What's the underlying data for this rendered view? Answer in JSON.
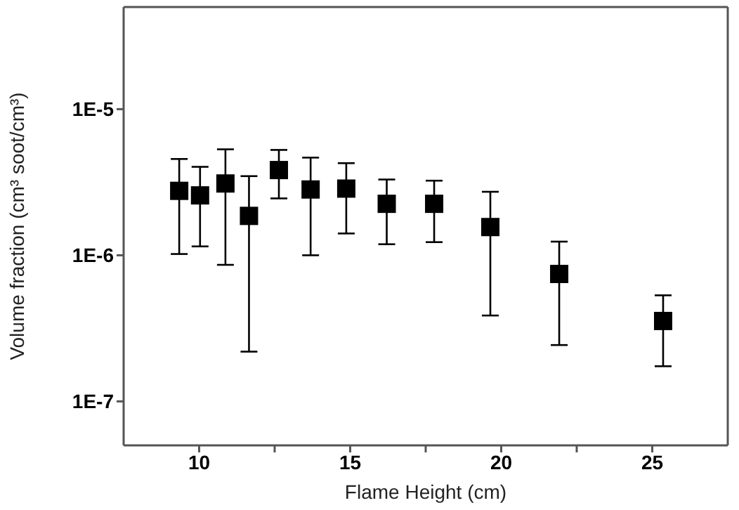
{
  "chart_data": {
    "type": "scatter",
    "xlabel": "Flame Height (cm)",
    "ylabel": "Volume fraction (cm³ soot/cm³)",
    "x": [
      9.34,
      10.03,
      10.87,
      11.65,
      12.64,
      13.69,
      14.87,
      16.21,
      17.78,
      19.64,
      21.92,
      25.36
    ],
    "series": [
      {
        "color": "#000000",
        "values": [
          2.76e-06,
          2.57e-06,
          3.1e-06,
          1.86e-06,
          3.83e-06,
          2.82e-06,
          2.86e-06,
          2.25e-06,
          2.25e-06,
          1.56e-06,
          7.45e-07,
          3.55e-07
        ],
        "errors": [
          [
            1.02e-06,
            4.56e-06
          ],
          [
            1.15e-06,
            4.03e-06
          ],
          [
            8.6e-07,
            5.31e-06
          ],
          [
            2.19e-07,
            3.48e-06
          ],
          [
            2.45e-06,
            5.26e-06
          ],
          [
            1e-06,
            4.66e-06
          ],
          [
            1.41e-06,
            4.27e-06
          ],
          [
            1.19e-06,
            3.3e-06
          ],
          [
            1.23e-06,
            3.24e-06
          ],
          [
            3.87e-07,
            2.72e-06
          ],
          [
            2.43e-07,
            1.24e-06
          ],
          [
            1.74e-07,
            5.32e-07
          ]
        ]
      }
    ],
    "xlim": [
      7.5,
      27.5
    ],
    "xticks": [
      10,
      {
        "value": 12.5,
        "label": null
      },
      15,
      {
        "value": 17.5,
        "label": null
      },
      20,
      {
        "value": 22.5,
        "label": null
      },
      25
    ],
    "ylim": [
      5e-08,
      5e-05
    ],
    "yticks": [
      {
        "value": 1e-07,
        "label": "1E-7"
      },
      {
        "value": 1e-06,
        "label": "1E-6"
      },
      {
        "value": 1e-05,
        "label": "1E-5"
      }
    ],
    "log": "y",
    "marker": "square"
  }
}
